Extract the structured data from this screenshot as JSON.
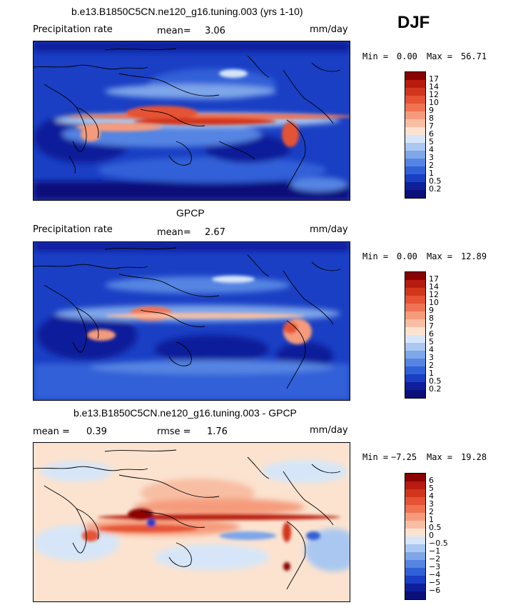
{
  "season": "DJF",
  "panels": [
    {
      "id": "model",
      "title": "b.e13.B1850C5CN.ne120_g16.tuning.003 (yrs 1-10)",
      "left_label": "Precipitation rate",
      "stat1_label": "mean=",
      "stat1_value": "3.06",
      "stat2_label": "",
      "stat2_value": "",
      "units": "mm/day",
      "min_label": "Min =",
      "min_value": "0.00",
      "max_label": "Max =",
      "max_value": "56.71",
      "colorbar_ticks": [
        "17",
        "14",
        "12",
        "10",
        "9",
        "8",
        "7",
        "6",
        "5",
        "4",
        "3",
        "2",
        "1",
        "0.5",
        "0.2"
      ],
      "colorbar_colors": [
        "#8b0000",
        "#b81c0e",
        "#d1361d",
        "#e55234",
        "#ef7352",
        "#f59b7c",
        "#f8bea3",
        "#fbe3d0",
        "#d6e6f8",
        "#a9c7f0",
        "#7ea6e9",
        "#5584e2",
        "#3061d8",
        "#1a3fc4",
        "#0f1f9a",
        "#0a0f7a"
      ]
    },
    {
      "id": "obs",
      "title": "GPCP",
      "left_label": "Precipitation rate",
      "stat1_label": "mean=",
      "stat1_value": "2.67",
      "stat2_label": "",
      "stat2_value": "",
      "units": "mm/day",
      "min_label": "Min =",
      "min_value": "0.00",
      "max_label": "Max =",
      "max_value": "12.89",
      "colorbar_ticks": [
        "17",
        "14",
        "12",
        "10",
        "9",
        "8",
        "7",
        "6",
        "5",
        "4",
        "3",
        "2",
        "1",
        "0.5",
        "0.2"
      ],
      "colorbar_colors": [
        "#8b0000",
        "#b81c0e",
        "#d1361d",
        "#e55234",
        "#ef7352",
        "#f59b7c",
        "#f8bea3",
        "#fbe3d0",
        "#d6e6f8",
        "#a9c7f0",
        "#7ea6e9",
        "#5584e2",
        "#3061d8",
        "#1a3fc4",
        "#0f1f9a",
        "#0a0f7a"
      ]
    },
    {
      "id": "diff",
      "title": "b.e13.B1850C5CN.ne120_g16.tuning.003 - GPCP",
      "left_label": "",
      "stat1_label": "mean =",
      "stat1_value": "0.39",
      "stat2_label": "rmse =",
      "stat2_value": "1.76",
      "units": "mm/day",
      "min_label": "Min =",
      "min_value": "−7.25",
      "max_label": "Max =",
      "max_value": "19.28",
      "colorbar_ticks": [
        "6",
        "5",
        "4",
        "3",
        "2",
        "1",
        "0.5",
        "0",
        "−0.5",
        "−1",
        "−2",
        "−3",
        "−4",
        "−5",
        "−6"
      ],
      "colorbar_colors": [
        "#8b0000",
        "#b81c0e",
        "#d1361d",
        "#e55234",
        "#ef7352",
        "#f59b7c",
        "#f8bea3",
        "#fbe3d0",
        "#d6e6f8",
        "#a9c7f0",
        "#7ea6e9",
        "#5584e2",
        "#3061d8",
        "#1a3fc4",
        "#0f1f9a",
        "#0a0f7a"
      ]
    }
  ]
}
